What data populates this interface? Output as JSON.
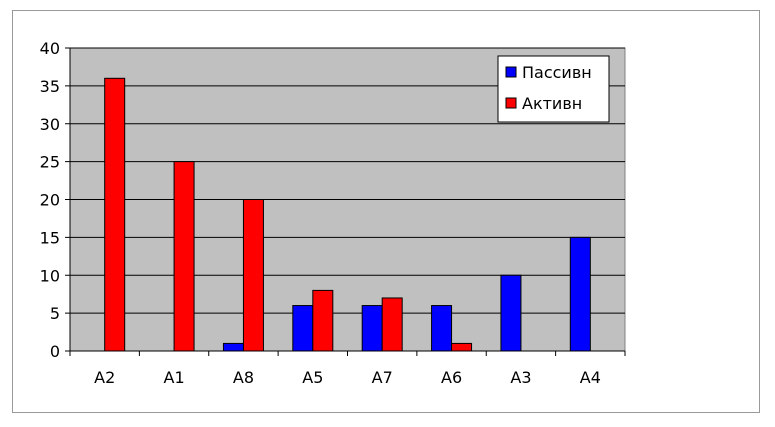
{
  "chart_data": {
    "type": "bar",
    "title": "",
    "xlabel": "",
    "ylabel": "",
    "categories": [
      "A2",
      "A1",
      "A8",
      "A5",
      "A7",
      "A6",
      "A3",
      "A4"
    ],
    "series": [
      {
        "name": "Пассивн",
        "color": "#0000ff",
        "values": [
          0,
          0,
          1,
          6,
          6,
          6,
          10,
          15
        ]
      },
      {
        "name": "Активн",
        "color": "#ff0000",
        "values": [
          36,
          25,
          20,
          8,
          7,
          1,
          0,
          0
        ]
      }
    ],
    "ylim": [
      0,
      40
    ],
    "yticks": [
      "0",
      "5",
      "10",
      "15",
      "20",
      "25",
      "30",
      "35",
      "40"
    ],
    "grid": true,
    "plot_background": "#c0c0c0",
    "legend_position": "top-right"
  }
}
